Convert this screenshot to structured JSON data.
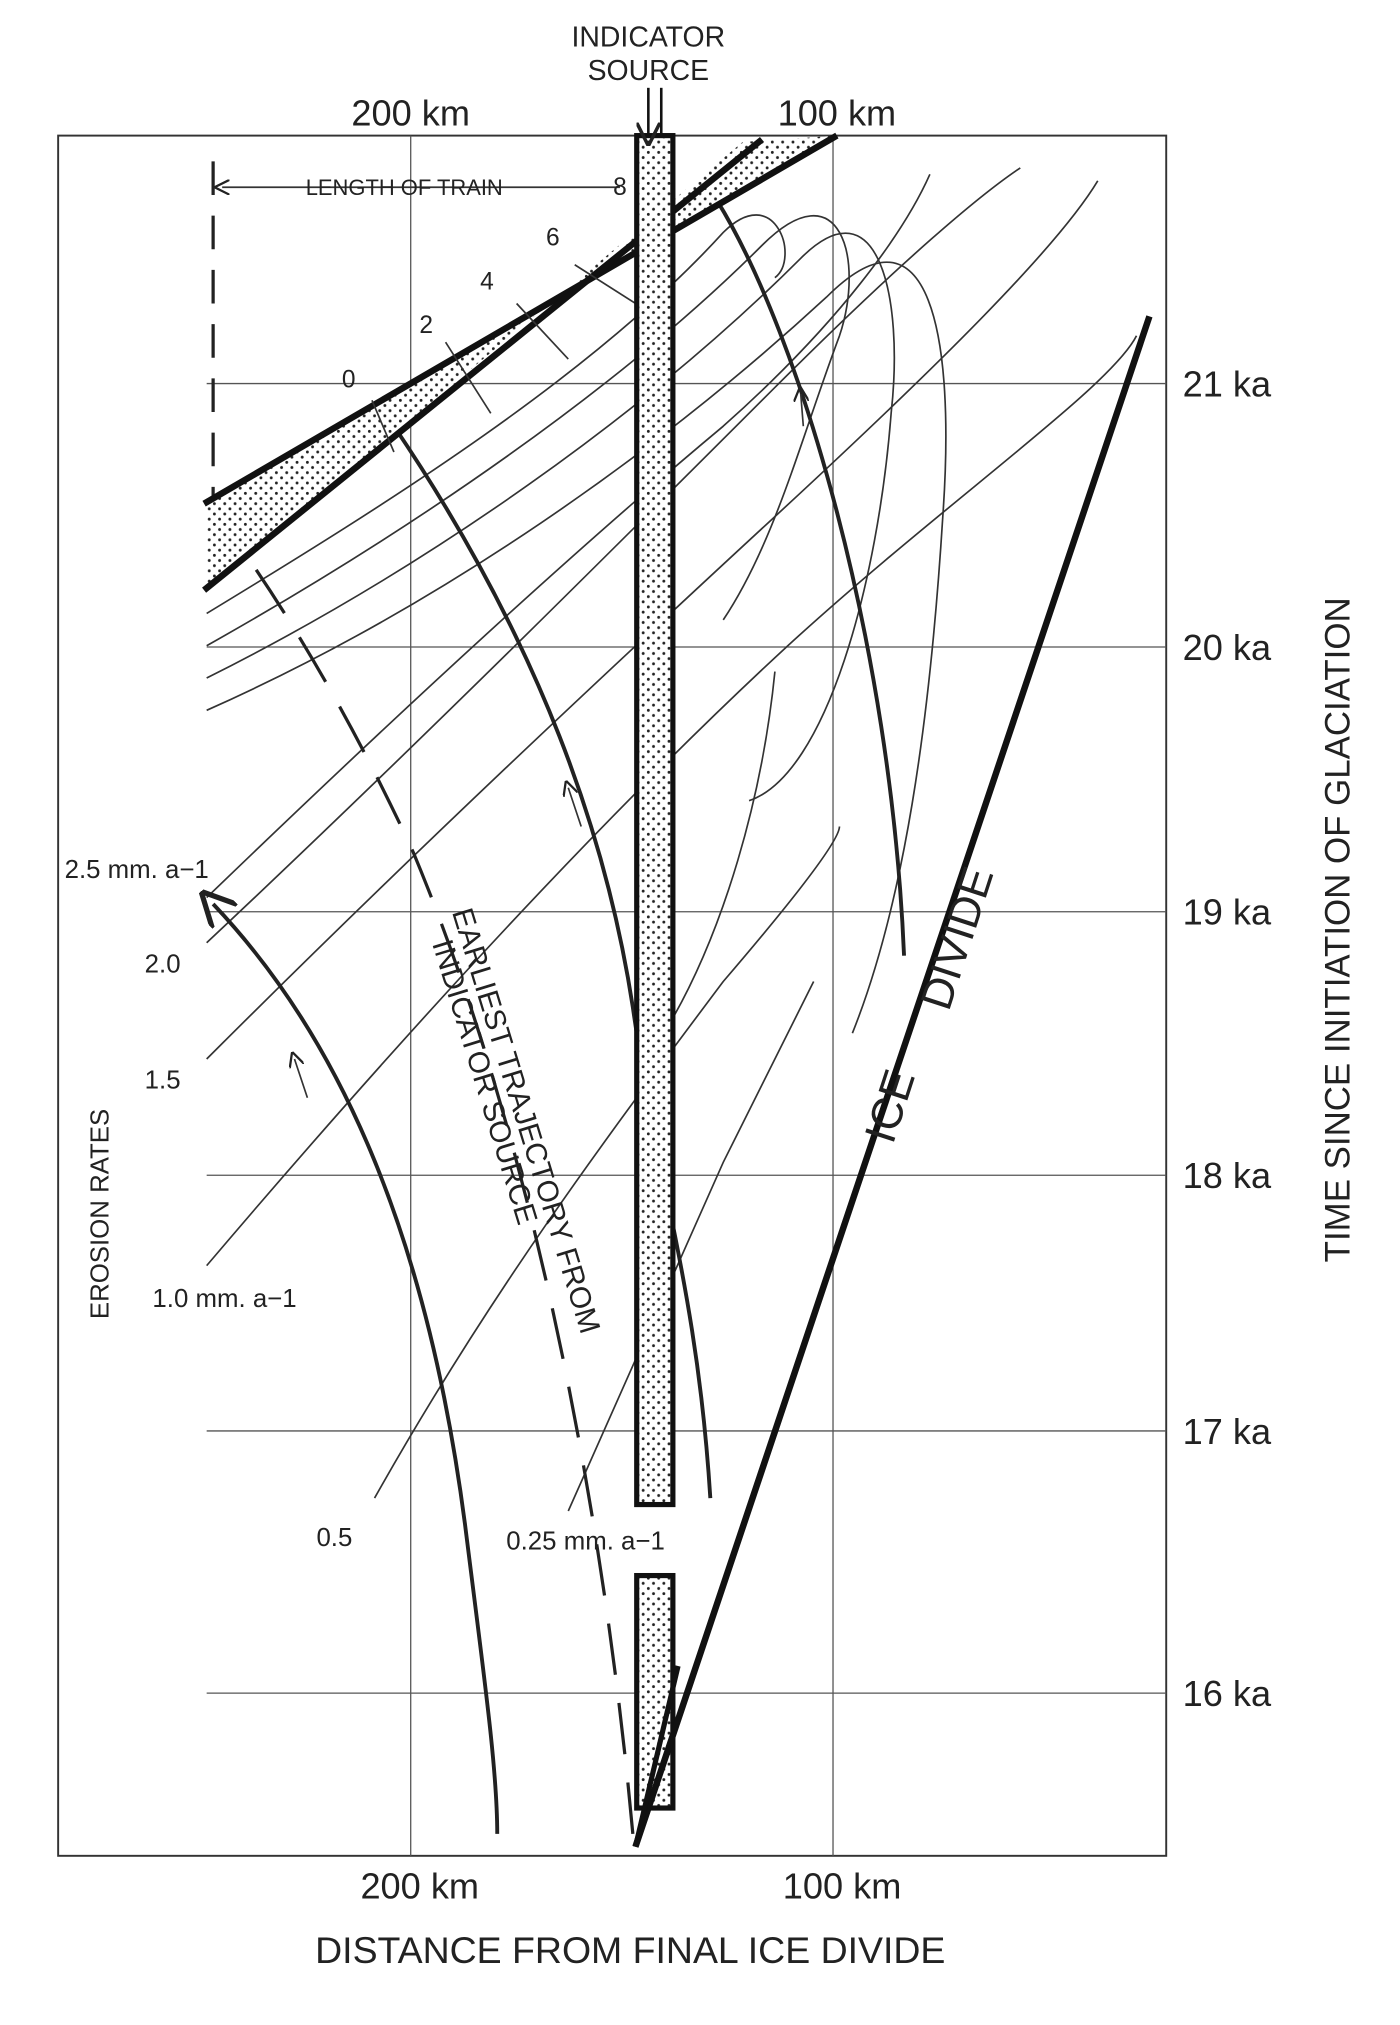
{
  "header": {
    "source_label": [
      "INDICATOR",
      "SOURCE"
    ]
  },
  "top_axis": {
    "labels": [
      "200 km",
      "100 km"
    ]
  },
  "bottom_axis": {
    "labels": [
      "200 km",
      "100 km"
    ],
    "title": "DISTANCE FROM FINAL ICE DIVIDE"
  },
  "right_axis": {
    "labels": [
      "21 ka",
      "20 ka",
      "19 ka",
      "18 ka",
      "17 ka",
      "16 ka"
    ],
    "title": "TIME SINCE INITIATION OF GLACIATION"
  },
  "train": {
    "label": "LENGTH OF TRAIN",
    "marks": [
      "0",
      "2",
      "4",
      "6",
      "8"
    ]
  },
  "erosion": {
    "title": "EROSION RATES",
    "rates": [
      "2.5 mm. a−1",
      "2.0",
      "1.5",
      "1.0 mm. a−1",
      "0.5",
      "0.25 mm. a−1"
    ]
  },
  "trajectory": {
    "label": [
      "EARLIEST TRAJECTORY FROM",
      "INDICATOR SOURCE"
    ]
  },
  "divide": {
    "label": [
      "ICE",
      "DIVIDE"
    ]
  }
}
